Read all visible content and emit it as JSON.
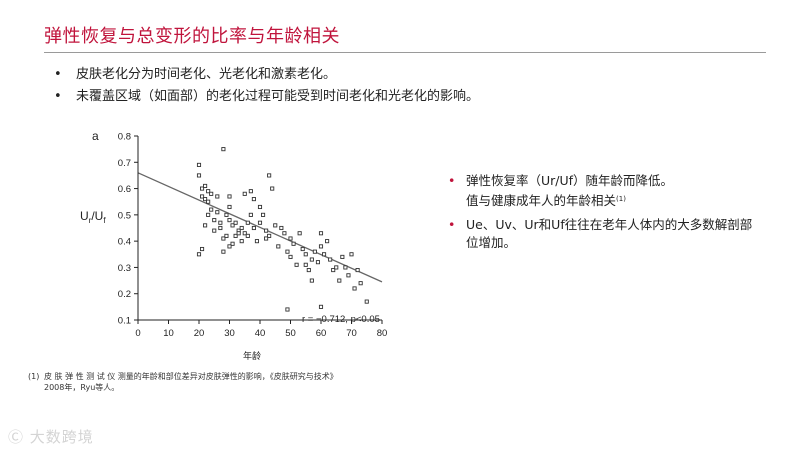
{
  "slide": {
    "title": "弹性恢复与总变形的比率与年龄相关",
    "bullets": [
      "皮肤老化分为时间老化、光老化和激素老化。",
      "未覆盖区域（如面部）的老化过程可能受到时间老化和光老化的影响。"
    ],
    "right_bullets": [
      {
        "line1": "弹性恢复率（Ur/Uf）随年龄而降低。",
        "line2": "值与健康成年人的年龄相关",
        "ref": "(1)"
      },
      {
        "line1": "Ue、Uv、Ur和Uf往往在老年人体内的大多数解剖部",
        "line2": "位增加。",
        "ref": ""
      }
    ],
    "footnote": {
      "num": "(1)",
      "line1": "皮 肤 弹 性 测 试 仪 测量的年龄和部位差异对皮肤弹性的影响，《皮肤研究与技术》",
      "line2": "2008年，Ryu等人。"
    },
    "watermark": "大数跨境",
    "accent_color": "#c0143c"
  },
  "chart_data": {
    "type": "scatter",
    "panel_label": "a",
    "xlabel": "年龄",
    "ylabel": "Ur/Uf",
    "xlim": [
      0,
      80
    ],
    "ylim": [
      0.1,
      0.8
    ],
    "xticks": [
      0,
      10,
      20,
      30,
      40,
      50,
      60,
      70,
      80
    ],
    "yticks": [
      0.1,
      0.2,
      0.3,
      0.4,
      0.5,
      0.6,
      0.7,
      0.8
    ],
    "annotation": "r = −0.712, p<0.05",
    "trendline": {
      "x": [
        0,
        80
      ],
      "y": [
        0.66,
        0.245
      ]
    },
    "points": [
      [
        20,
        0.69
      ],
      [
        20,
        0.65
      ],
      [
        21,
        0.6
      ],
      [
        21,
        0.57
      ],
      [
        22,
        0.56
      ],
      [
        22,
        0.61
      ],
      [
        23,
        0.59
      ],
      [
        23,
        0.55
      ],
      [
        24,
        0.58
      ],
      [
        24,
        0.52
      ],
      [
        20,
        0.35
      ],
      [
        21,
        0.37
      ],
      [
        22,
        0.46
      ],
      [
        23,
        0.5
      ],
      [
        25,
        0.48
      ],
      [
        25,
        0.44
      ],
      [
        26,
        0.51
      ],
      [
        27,
        0.47
      ],
      [
        27,
        0.45
      ],
      [
        28,
        0.75
      ],
      [
        28,
        0.41
      ],
      [
        28,
        0.36
      ],
      [
        29,
        0.5
      ],
      [
        29,
        0.42
      ],
      [
        30,
        0.57
      ],
      [
        30,
        0.53
      ],
      [
        30,
        0.48
      ],
      [
        31,
        0.46
      ],
      [
        31,
        0.39
      ],
      [
        32,
        0.47
      ],
      [
        32,
        0.42
      ],
      [
        33,
        0.44
      ],
      [
        33,
        0.43
      ],
      [
        34,
        0.45
      ],
      [
        34,
        0.4
      ],
      [
        35,
        0.43
      ],
      [
        35,
        0.58
      ],
      [
        36,
        0.47
      ],
      [
        36,
        0.42
      ],
      [
        37,
        0.59
      ],
      [
        37,
        0.5
      ],
      [
        38,
        0.56
      ],
      [
        38,
        0.45
      ],
      [
        39,
        0.4
      ],
      [
        40,
        0.53
      ],
      [
        40,
        0.47
      ],
      [
        41,
        0.5
      ],
      [
        42,
        0.44
      ],
      [
        43,
        0.65
      ],
      [
        43,
        0.42
      ],
      [
        44,
        0.6
      ],
      [
        45,
        0.46
      ],
      [
        46,
        0.38
      ],
      [
        47,
        0.45
      ],
      [
        48,
        0.43
      ],
      [
        49,
        0.36
      ],
      [
        50,
        0.41
      ],
      [
        50,
        0.34
      ],
      [
        51,
        0.39
      ],
      [
        52,
        0.31
      ],
      [
        53,
        0.43
      ],
      [
        54,
        0.37
      ],
      [
        55,
        0.35
      ],
      [
        55,
        0.31
      ],
      [
        56,
        0.29
      ],
      [
        57,
        0.33
      ],
      [
        58,
        0.36
      ],
      [
        59,
        0.32
      ],
      [
        60,
        0.43
      ],
      [
        60,
        0.38
      ],
      [
        61,
        0.35
      ],
      [
        62,
        0.4
      ],
      [
        63,
        0.33
      ],
      [
        64,
        0.29
      ],
      [
        65,
        0.3
      ],
      [
        66,
        0.25
      ],
      [
        67,
        0.34
      ],
      [
        68,
        0.3
      ],
      [
        69,
        0.27
      ],
      [
        70,
        0.35
      ],
      [
        71,
        0.22
      ],
      [
        72,
        0.29
      ],
      [
        73,
        0.24
      ],
      [
        75,
        0.17
      ],
      [
        49,
        0.14
      ],
      [
        60,
        0.15
      ],
      [
        30,
        0.38
      ],
      [
        26,
        0.57
      ],
      [
        42,
        0.41
      ],
      [
        57,
        0.25
      ]
    ]
  }
}
